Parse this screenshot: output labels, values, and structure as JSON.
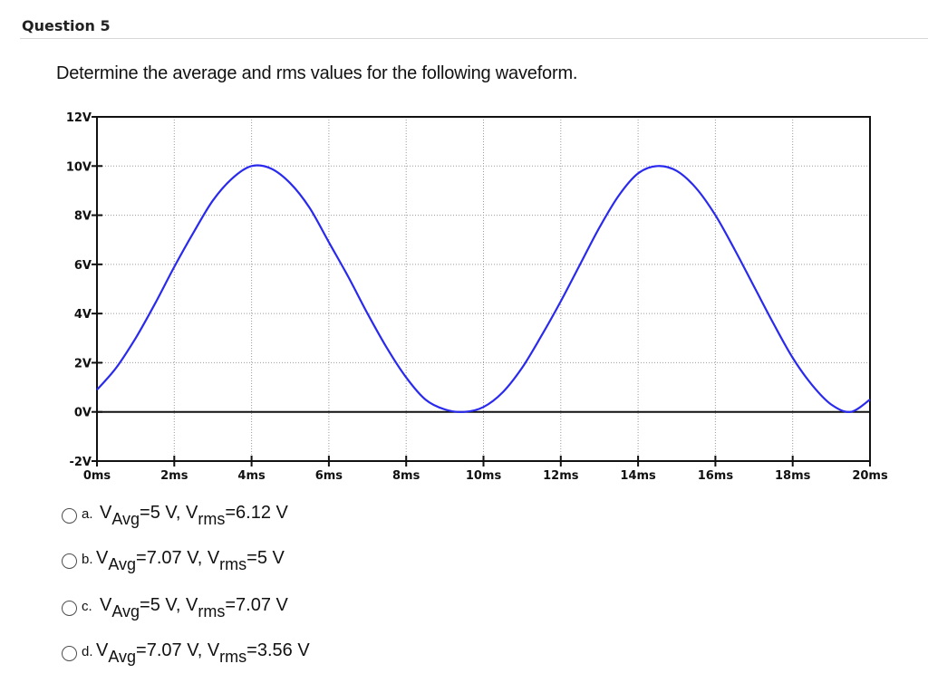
{
  "question": {
    "title": "Question 5",
    "prompt": "Determine the average and rms values for the following waveform."
  },
  "chart_data": {
    "type": "line",
    "title": "",
    "xlabel": "",
    "ylabel": "",
    "xlim": [
      0,
      20
    ],
    "ylim": [
      -2,
      12
    ],
    "x_unit": "ms",
    "y_unit": "V",
    "x_ticks": [
      "0ms",
      "2ms",
      "4ms",
      "6ms",
      "8ms",
      "10ms",
      "12ms",
      "14ms",
      "16ms",
      "18ms",
      "20ms"
    ],
    "y_ticks": [
      "12V",
      "10V",
      "8V",
      "6V",
      "4V",
      "2V",
      "0V",
      "-2V"
    ],
    "grid": true,
    "series": [
      {
        "color": "#2a2aee",
        "x": [
          0,
          0.5,
          1,
          1.5,
          2,
          2.5,
          3,
          3.5,
          4,
          4.5,
          5,
          5.5,
          6,
          6.5,
          7,
          7.5,
          8,
          8.5,
          9,
          9.5,
          10,
          10.5,
          11,
          11.5,
          12,
          12.5,
          13,
          13.5,
          14,
          14.5,
          15,
          15.5,
          16,
          16.5,
          17,
          17.5,
          18,
          18.5,
          19,
          19.5,
          20
        ],
        "y": [
          0.9,
          1.8,
          3.0,
          4.4,
          5.9,
          7.3,
          8.6,
          9.5,
          10.0,
          9.9,
          9.3,
          8.3,
          6.9,
          5.5,
          4.0,
          2.6,
          1.4,
          0.5,
          0.1,
          0.0,
          0.2,
          0.8,
          1.8,
          3.1,
          4.5,
          6.0,
          7.5,
          8.8,
          9.7,
          10.0,
          9.8,
          9.1,
          8.0,
          6.6,
          5.1,
          3.6,
          2.2,
          1.1,
          0.3,
          0.0,
          0.5
        ]
      }
    ]
  },
  "options": [
    {
      "letter": "a.",
      "avg_prefix": "V",
      "avg_sub": "Avg",
      "avg_value": "=5 V, ",
      "rms_prefix": "V",
      "rms_sub": "rms",
      "rms_value": "=6.12 V"
    },
    {
      "letter": "b.",
      "avg_prefix": "V",
      "avg_sub": "Avg",
      "avg_value": "=7.07 V, ",
      "rms_prefix": "V",
      "rms_sub": "rms",
      "rms_value": "=5 V"
    },
    {
      "letter": "c.",
      "avg_prefix": "V",
      "avg_sub": "Avg",
      "avg_value": "=5 V, ",
      "rms_prefix": "V",
      "rms_sub": "rms",
      "rms_value": "=7.07 V"
    },
    {
      "letter": "d.",
      "avg_prefix": "V",
      "avg_sub": "Avg",
      "avg_value": "=7.07 V, ",
      "rms_prefix": "V",
      "rms_sub": "rms",
      "rms_value": "=3.56 V"
    }
  ]
}
